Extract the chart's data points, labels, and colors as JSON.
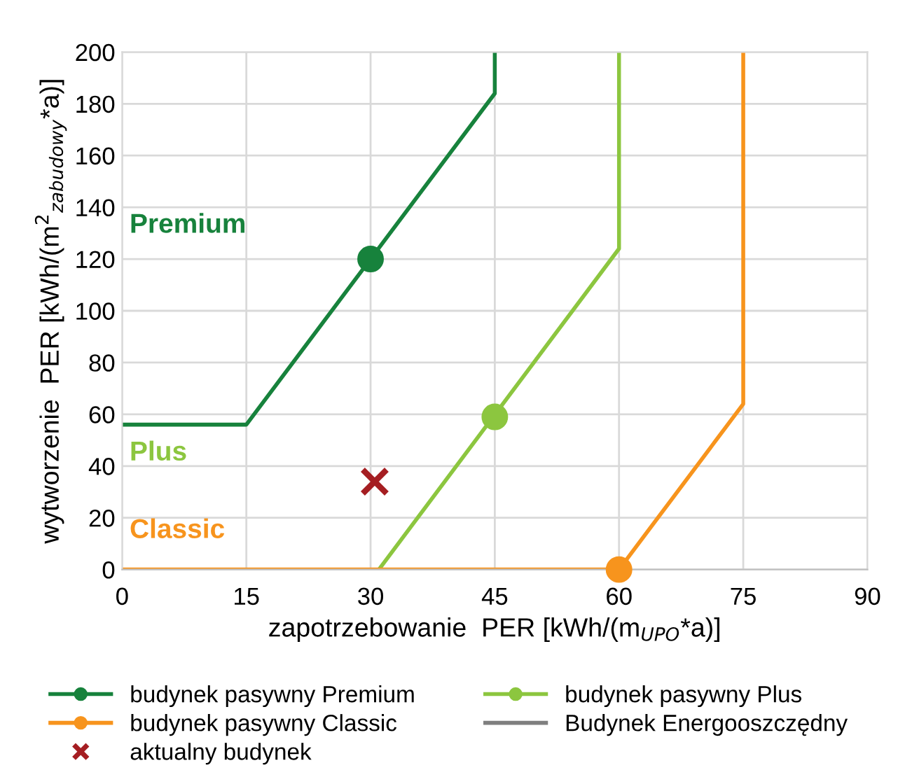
{
  "chart_data": {
    "type": "line",
    "xlabel": "zapotrzebowanie  PER [kWh/(m$_{UPO}$*a)]",
    "ylabel": "wytworzenie  PER [kWh/(m$^{2}$$_{zabudowy}$*a)]",
    "xlim": [
      0,
      90
    ],
    "xticks": [
      0,
      15,
      30,
      45,
      60,
      75,
      90
    ],
    "ylim": [
      0,
      200
    ],
    "yticks": [
      0,
      20,
      40,
      60,
      80,
      100,
      120,
      140,
      160,
      180,
      200
    ],
    "grid": true,
    "legend": "bottom",
    "series": [
      {
        "name": "budynek pasywny Premium",
        "color": "#17823c",
        "x": [
          0,
          15,
          45,
          45
        ],
        "values": [
          56,
          56,
          184,
          200
        ]
      },
      {
        "name": "budynek pasywny Plus",
        "color": "#8cc63f",
        "x": [
          31,
          60,
          60
        ],
        "values": [
          0,
          124,
          200
        ]
      },
      {
        "name": "budynek pasywny Classic",
        "color": "#f7941d",
        "x": [
          0,
          60,
          75,
          75
        ],
        "values": [
          0,
          0,
          64,
          200
        ]
      },
      {
        "name": "Budynek Energooszczędny",
        "color": "#7f7f7f"
      },
      {
        "type": "scatter",
        "marker": "circle",
        "color": "#17823c",
        "x": [
          30
        ],
        "values": [
          120
        ]
      },
      {
        "type": "scatter",
        "marker": "circle",
        "color": "#8cc63f",
        "x": [
          45
        ],
        "values": [
          59
        ]
      },
      {
        "type": "scatter",
        "marker": "circle",
        "color": "#f7941d",
        "x": [
          60
        ],
        "values": [
          0
        ]
      },
      {
        "name": "aktualny budynek",
        "type": "scatter",
        "marker": "cross",
        "color": "#a51e22",
        "x": [
          30.5
        ],
        "values": [
          34
        ]
      }
    ],
    "annotations": [
      "Premium",
      "Plus",
      "Classic"
    ]
  }
}
